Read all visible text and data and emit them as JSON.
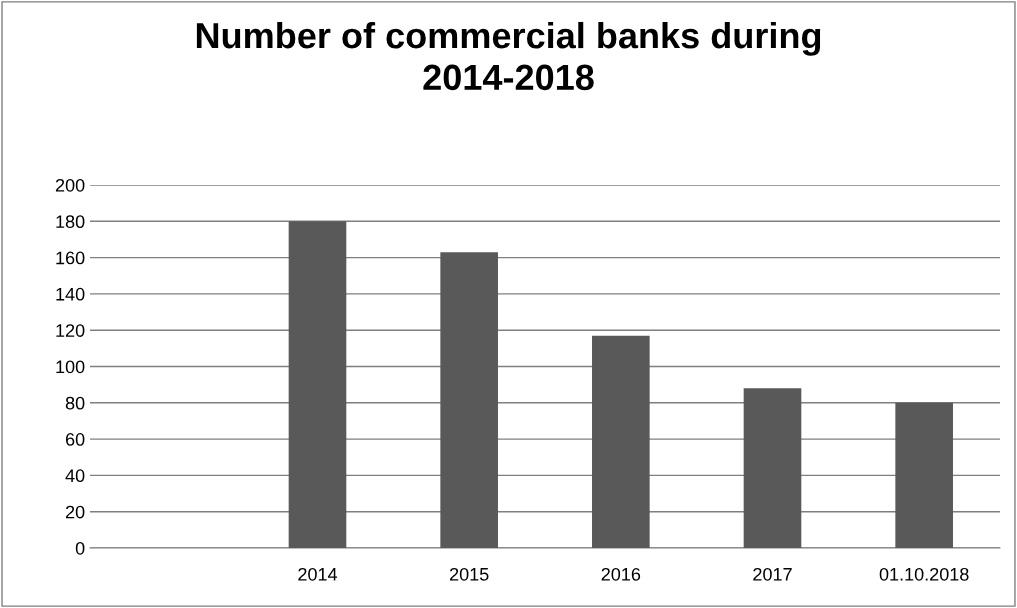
{
  "chart_data": {
    "type": "bar",
    "title": "Number of commercial banks during\n2014-2018",
    "categories": [
      null,
      "2014",
      "2015",
      "2016",
      "2017",
      "01.10.2018"
    ],
    "values": [
      null,
      180,
      163,
      117,
      88,
      80
    ],
    "color": "#595959",
    "ylim": [
      0,
      200
    ],
    "yticks": [
      0,
      20,
      40,
      60,
      80,
      100,
      120,
      140,
      160,
      180,
      200
    ],
    "grid": "y",
    "legend": false
  }
}
